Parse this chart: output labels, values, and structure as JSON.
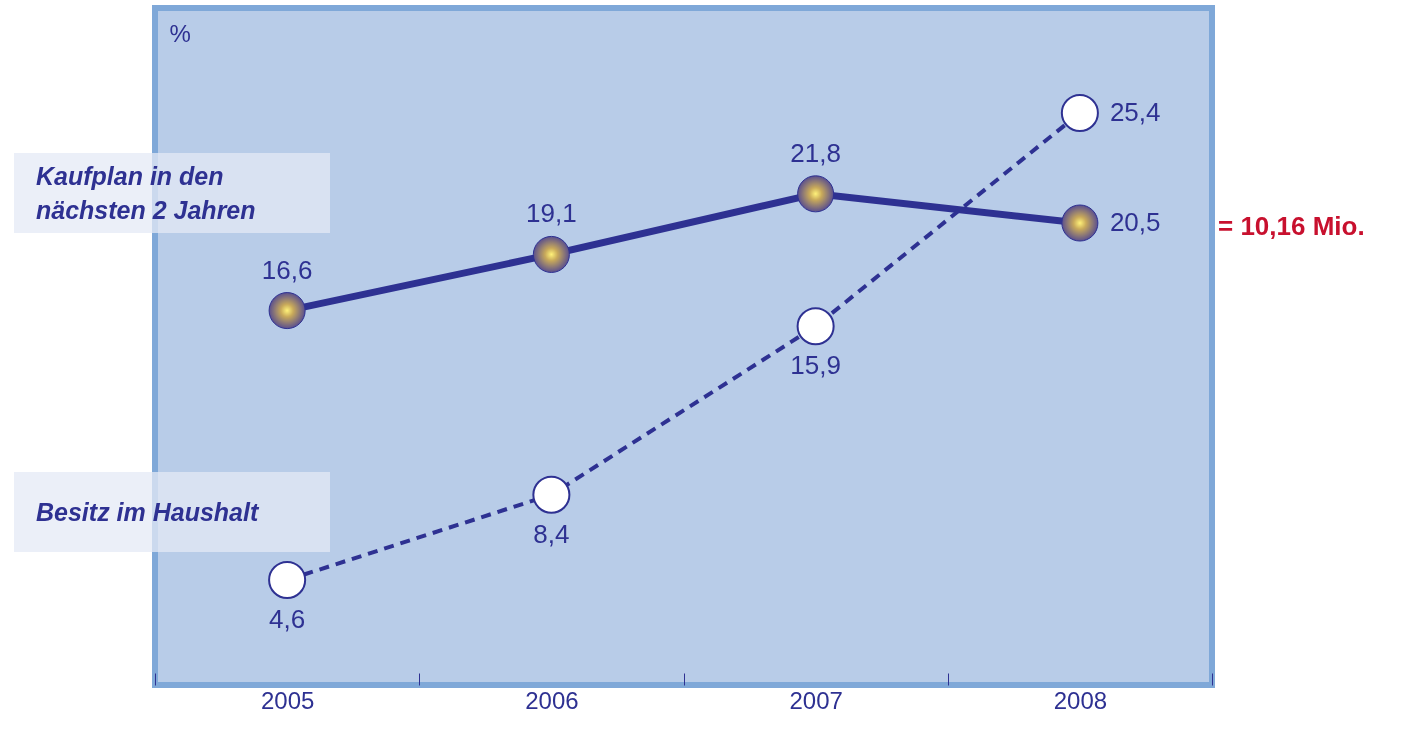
{
  "chart_data": {
    "type": "line",
    "ylabel": "%",
    "categories": [
      "2005",
      "2006",
      "2007",
      "2008"
    ],
    "series": [
      {
        "name": "Kaufplan in den nächsten 2 Jahren",
        "color": "#2e3192",
        "line_style": "solid",
        "values": [
          16.6,
          19.1,
          21.8,
          20.5
        ],
        "value_labels": [
          "16,6",
          "19,1",
          "21,8",
          "20,5"
        ]
      },
      {
        "name": "Besitz im Haushalt",
        "color": "#2e3192",
        "line_style": "dashed",
        "values": [
          4.6,
          8.4,
          15.9,
          25.4
        ],
        "value_labels": [
          "4,6",
          "8,4",
          "15,9",
          "25,4"
        ]
      }
    ],
    "marker": "circle",
    "grid": false,
    "legend": "left",
    "annotations": [
      "= 10,16 Mio."
    ]
  }
}
